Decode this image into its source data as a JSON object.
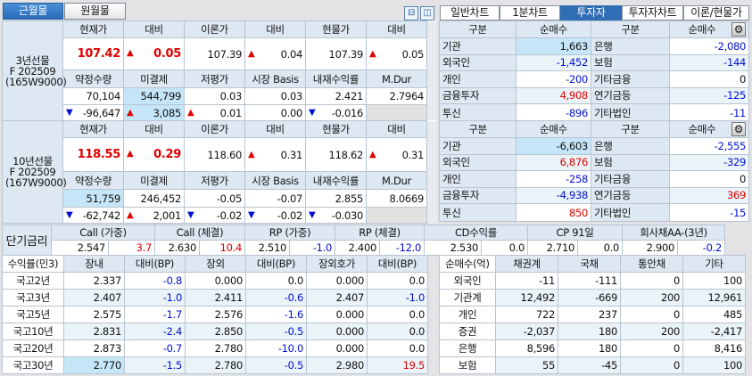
{
  "top_tabs": [
    {
      "label": "근월물",
      "active": true
    },
    {
      "label": "원월물",
      "active": false
    }
  ],
  "right_tabs": [
    {
      "label": "일반차트"
    },
    {
      "label": "1분차트"
    },
    {
      "label": "투자자",
      "active": true
    },
    {
      "label": "투자자차트"
    },
    {
      "label": "이론/현물가"
    }
  ],
  "colors": {
    "up": "#e00000",
    "down": "#0010d0",
    "header_bg": "#dde8f3",
    "active_tab": "#2f6db5",
    "highlight": "#c6e6f8"
  },
  "futures": [
    {
      "label": [
        "3년선물",
        "F 202509",
        "(165W9000)"
      ],
      "header1": [
        "현재가",
        "대비",
        "이론가",
        "대비",
        "현물가",
        "대비"
      ],
      "row1": [
        {
          "v": "107.42",
          "color": "red",
          "big": true
        },
        {
          "v": "0.05",
          "dir": "up",
          "color": "red",
          "big": true
        },
        {
          "v": "107.39"
        },
        {
          "v": "0.04",
          "dir": "up"
        },
        {
          "v": "107.39"
        },
        {
          "v": "0.05",
          "dir": "up"
        }
      ],
      "header2": [
        "약정수량",
        "미결제",
        "저평가",
        "시장 Basis",
        "내재수익률",
        "M.Dur"
      ],
      "row2": [
        {
          "v": "70,104"
        },
        {
          "v": "544,799",
          "hl": true
        },
        {
          "v": "0.03"
        },
        {
          "v": "0.03"
        },
        {
          "v": "2.421"
        },
        {
          "v": "2.7964"
        }
      ],
      "row3": [
        {
          "v": "-96,647",
          "dir": "down"
        },
        {
          "v": "3,085",
          "dir": "up",
          "hl": true
        },
        {
          "v": "0.01",
          "dir": "up"
        },
        {
          "v": "0.00"
        },
        {
          "v": "-0.016",
          "dir": "down"
        },
        {
          "v": "",
          "gray": true
        }
      ]
    },
    {
      "label": [
        "10년선물",
        "F 202509",
        "(167W9000)"
      ],
      "header1": [
        "현재가",
        "대비",
        "이론가",
        "대비",
        "현물가",
        "대비"
      ],
      "row1": [
        {
          "v": "118.55",
          "color": "red",
          "big": true
        },
        {
          "v": "0.29",
          "dir": "up",
          "color": "red",
          "big": true
        },
        {
          "v": "118.60"
        },
        {
          "v": "0.31",
          "dir": "up"
        },
        {
          "v": "118.62"
        },
        {
          "v": "0.31",
          "dir": "up"
        }
      ],
      "header2": [
        "약정수량",
        "미결제",
        "저평가",
        "시장 Basis",
        "내재수익률",
        "M.Dur"
      ],
      "row2": [
        {
          "v": "51,759",
          "hl": true
        },
        {
          "v": "246,452"
        },
        {
          "v": "-0.05"
        },
        {
          "v": "-0.07"
        },
        {
          "v": "2.855"
        },
        {
          "v": "8.0669"
        }
      ],
      "row3": [
        {
          "v": "-62,742",
          "dir": "down"
        },
        {
          "v": "2,001",
          "dir": "up"
        },
        {
          "v": "-0.02",
          "dir": "down"
        },
        {
          "v": "-0.02",
          "dir": "down"
        },
        {
          "v": "-0.030",
          "dir": "down"
        },
        {
          "v": "",
          "gray": true
        }
      ]
    }
  ],
  "investors": [
    {
      "headers": [
        "구분",
        "순매수",
        "구분",
        "순매수"
      ],
      "rows": [
        {
          "a": "기관",
          "av": "1,663",
          "ac": "",
          "ahl": true,
          "b": "은행",
          "bv": "-2,080",
          "bc": "blue"
        },
        {
          "a": "외국인",
          "av": "-1,452",
          "ac": "blue",
          "b": "보험",
          "bv": "-144",
          "bc": "blue"
        },
        {
          "a": "개인",
          "av": "-200",
          "ac": "blue",
          "b": "기타금융",
          "bv": "0",
          "bc": ""
        },
        {
          "a": "금융투자",
          "av": "4,908",
          "ac": "red",
          "b": "연기금등",
          "bv": "-125",
          "bc": "blue"
        },
        {
          "a": "투신",
          "av": "-896",
          "ac": "blue",
          "b": "기타법인",
          "bv": "-11",
          "bc": "blue"
        }
      ]
    },
    {
      "headers": [
        "구분",
        "순매수",
        "구분",
        "순매수"
      ],
      "rows": [
        {
          "a": "기관",
          "av": "-6,603",
          "ac": "",
          "ahl": true,
          "b": "은행",
          "bv": "-2,555",
          "bc": "blue"
        },
        {
          "a": "외국인",
          "av": "6,876",
          "ac": "red",
          "b": "보험",
          "bv": "-329",
          "bc": "blue"
        },
        {
          "a": "개인",
          "av": "-258",
          "ac": "blue",
          "b": "기타금융",
          "bv": "0",
          "bc": ""
        },
        {
          "a": "금융투자",
          "av": "-4,938",
          "ac": "blue",
          "b": "연기금등",
          "bv": "369",
          "bc": "red"
        },
        {
          "a": "투신",
          "av": "850",
          "ac": "red",
          "b": "기타법인",
          "bv": "-15",
          "bc": "blue"
        }
      ]
    }
  ],
  "short_rates": {
    "label": "단기금리",
    "items": [
      {
        "name": "Call (가중)",
        "v": "2.547",
        "chg": "3.7",
        "c": "red"
      },
      {
        "name": "Call (체결)",
        "v": "2.630",
        "chg": "10.4",
        "c": "red"
      },
      {
        "name": "RP (가중)",
        "v": "2.510",
        "chg": "-1.0",
        "c": "blue"
      },
      {
        "name": "RP (체결)",
        "v": "2.400",
        "chg": "-12.0",
        "c": "blue"
      },
      {
        "name": "CD수익률",
        "v": "2.530",
        "chg": "0.0",
        "c": ""
      },
      {
        "name": "CP 91일",
        "v": "2.710",
        "chg": "0.0",
        "c": ""
      },
      {
        "name": "회사채AA-(3년)",
        "v": "2.900",
        "chg": "-0.2",
        "c": "blue"
      }
    ]
  },
  "yields": {
    "headers": [
      "수익률(민3)",
      "장내",
      "대비(BP)",
      "장외",
      "대비(BP)",
      "장외호가",
      "대비(BP)"
    ],
    "rows": [
      {
        "name": "국고2년",
        "v": [
          "2.337",
          "-0.8",
          "0.000",
          "0.0",
          "0.000",
          "0.0"
        ],
        "c": [
          "",
          "blue",
          "",
          "",
          "",
          ""
        ]
      },
      {
        "name": "국고3년",
        "v": [
          "2.407",
          "-1.0",
          "2.411",
          "-0.6",
          "2.407",
          "-1.0"
        ],
        "c": [
          "",
          "blue",
          "",
          "blue",
          "",
          "blue"
        ]
      },
      {
        "name": "국고5년",
        "v": [
          "2.575",
          "-1.7",
          "2.576",
          "-1.6",
          "0.000",
          "0.0"
        ],
        "c": [
          "",
          "blue",
          "",
          "blue",
          "",
          ""
        ]
      },
      {
        "name": "국고10년",
        "v": [
          "2.831",
          "-2.4",
          "2.850",
          "-0.5",
          "0.000",
          "0.0"
        ],
        "c": [
          "",
          "blue",
          "",
          "blue",
          "",
          ""
        ]
      },
      {
        "name": "국고20년",
        "v": [
          "2.873",
          "-0.7",
          "2.780",
          "-10.0",
          "0.000",
          "0.0"
        ],
        "c": [
          "",
          "blue",
          "",
          "blue",
          "",
          ""
        ]
      },
      {
        "name": "국고30년",
        "v": [
          "2.770",
          "-1.5",
          "2.780",
          "-0.5",
          "2.980",
          "19.5"
        ],
        "c": [
          "",
          "blue",
          "",
          "blue",
          "",
          "red"
        ],
        "hl": 0
      }
    ]
  },
  "net_buy": {
    "headers": [
      "순매수(억)",
      "채권계",
      "국채",
      "통안채",
      "기타"
    ],
    "rows": [
      {
        "name": "외국인",
        "v": [
          "-11",
          "-111",
          "0",
          "100"
        ]
      },
      {
        "name": "기관계",
        "v": [
          "12,492",
          "-669",
          "200",
          "12,961"
        ]
      },
      {
        "name": "개인",
        "v": [
          "722",
          "237",
          "0",
          "485"
        ]
      },
      {
        "name": "증권",
        "v": [
          "-2,037",
          "180",
          "200",
          "-2,417"
        ]
      },
      {
        "name": "은행",
        "v": [
          "8,596",
          "180",
          "0",
          "8,416"
        ]
      },
      {
        "name": "보험",
        "v": [
          "55",
          "-45",
          "0",
          "100"
        ]
      }
    ]
  }
}
